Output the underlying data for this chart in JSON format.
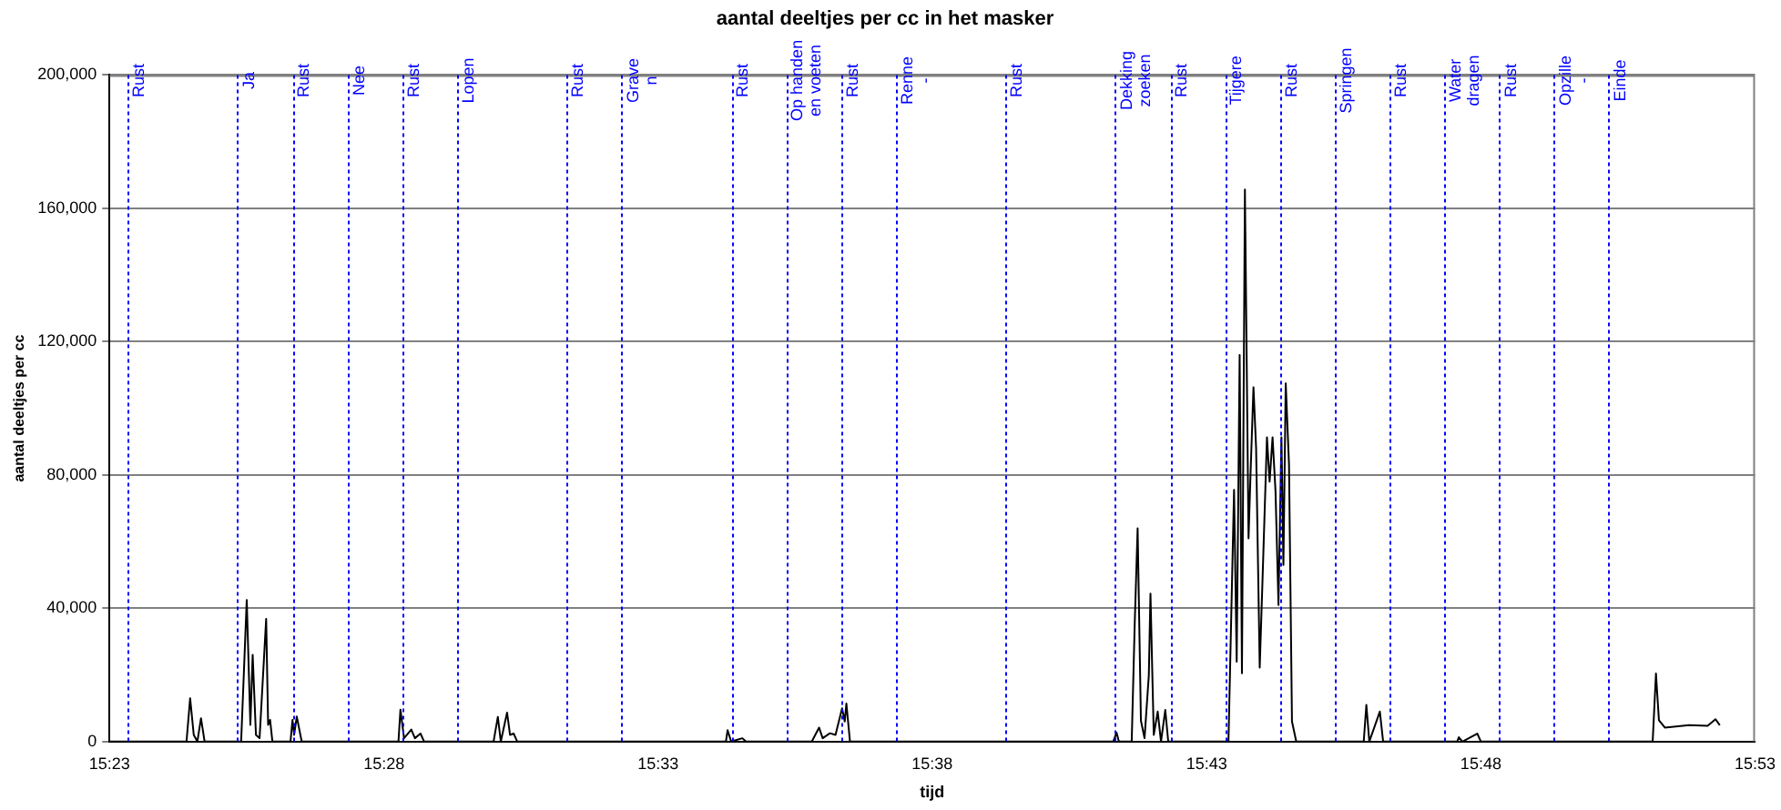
{
  "chart_data": {
    "type": "line",
    "title": "aantal deeltjes per cc in het masker",
    "xlabel": "tijd",
    "ylabel": "aantal deeltjes per cc",
    "x": [
      15.3833,
      15.405,
      15.4067,
      15.4078,
      15.4089,
      15.41,
      15.4111,
      15.4122,
      15.4233,
      15.425,
      15.4261,
      15.4268,
      15.4278,
      15.4289,
      15.4309,
      15.4315,
      15.4321,
      15.4328,
      15.4383,
      15.4389,
      15.4394,
      15.4402,
      15.4417,
      15.4711,
      15.4717,
      15.4728,
      15.475,
      15.4761,
      15.4778,
      15.4789,
      15.5,
      15.5013,
      15.5022,
      15.5041,
      15.505,
      15.5061,
      15.5072,
      15.5706,
      15.5711,
      15.5722,
      15.5756,
      15.5767,
      15.5967,
      15.5989,
      15.6,
      15.6022,
      15.6039,
      15.6059,
      15.6067,
      15.6072,
      15.6083,
      15.6883,
      15.6893,
      15.69,
      15.6939,
      15.6948,
      15.6957,
      15.6967,
      15.6978,
      15.6991,
      15.6996,
      15.7006,
      15.7018,
      15.7028,
      15.7041,
      15.705,
      15.7233,
      15.725,
      15.7258,
      15.7267,
      15.7274,
      15.7283,
      15.7294,
      15.73,
      15.7309,
      15.7317,
      15.7328,
      15.7336,
      15.735,
      15.7358,
      15.7367,
      15.7376,
      15.7385,
      15.7394,
      15.74,
      15.7407,
      15.7417,
      15.7426,
      15.7439,
      15.7644,
      15.7652,
      15.7661,
      15.7693,
      15.7703,
      15.7928,
      15.7933,
      15.7944,
      15.7989,
      15.8,
      15.8522,
      15.8532,
      15.8541,
      15.8559,
      15.8633,
      15.8689,
      15.8713,
      15.8726
    ],
    "series": [
      {
        "color": "#000000",
        "values": [
          0,
          0,
          0,
          13000,
          2000,
          0,
          7000,
          0,
          0,
          42500,
          5000,
          26000,
          2000,
          1000,
          36800,
          5000,
          6500,
          0,
          0,
          6500,
          2000,
          7500,
          0,
          0,
          9600,
          1000,
          3600,
          1000,
          2400,
          0,
          0,
          7400,
          0,
          8700,
          2000,
          2400,
          0,
          0,
          3400,
          0,
          1000,
          0,
          0,
          4200,
          1000,
          2500,
          2000,
          10000,
          6000,
          11400,
          0,
          0,
          2700,
          0,
          0,
          34700,
          64000,
          6300,
          1000,
          19800,
          44400,
          2000,
          9000,
          0,
          9500,
          0,
          0,
          75500,
          24000,
          116000,
          20500,
          165600,
          61000,
          80000,
          106300,
          88000,
          22200,
          47000,
          91300,
          78000,
          91300,
          75000,
          41000,
          91300,
          53000,
          107500,
          83000,
          6000,
          0,
          0,
          11000,
          0,
          9000,
          0,
          0,
          1300,
          0,
          2400,
          0,
          0,
          20400,
          6400,
          4200,
          4900,
          4700,
          6700,
          4900
        ]
      }
    ],
    "xlim": [
      15.3833,
      15.8833
    ],
    "xticks": [
      {
        "value": 15.3833,
        "label": "15:23"
      },
      {
        "value": 15.4667,
        "label": "15:28"
      },
      {
        "value": 15.55,
        "label": "15:33"
      },
      {
        "value": 15.6333,
        "label": "15:38"
      },
      {
        "value": 15.7167,
        "label": "15:43"
      },
      {
        "value": 15.8,
        "label": "15:48"
      },
      {
        "value": 15.8833,
        "label": "15:53"
      }
    ],
    "ylim": [
      0,
      200000
    ],
    "yticks": [
      0,
      {
        "value": 40000,
        "label": "40,000"
      },
      {
        "value": 80000,
        "label": "80,000"
      },
      {
        "value": 120000,
        "label": "120,000"
      },
      {
        "value": 160000,
        "label": "160,000"
      },
      {
        "value": 200000,
        "label": "200,000"
      }
    ],
    "grid": "y",
    "legend": false,
    "ref_lines": [
      {
        "axis": "x",
        "value": 15.3889,
        "label": "Rust",
        "color": "#0000ff",
        "line_style": "dotted"
      },
      {
        "axis": "x",
        "value": 15.4222,
        "label": "Ja",
        "color": "#0000ff",
        "line_style": "dotted"
      },
      {
        "axis": "x",
        "value": 15.4389,
        "label": "Rust",
        "color": "#0000ff",
        "line_style": "dotted"
      },
      {
        "axis": "x",
        "value": 15.4556,
        "label": "Nee",
        "color": "#0000ff",
        "line_style": "dotted"
      },
      {
        "axis": "x",
        "value": 15.4722,
        "label": "Rust",
        "color": "#0000ff",
        "line_style": "dotted"
      },
      {
        "axis": "x",
        "value": 15.4889,
        "label": "Lopen",
        "color": "#0000ff",
        "line_style": "dotted"
      },
      {
        "axis": "x",
        "value": 15.5222,
        "label": "Rust",
        "color": "#0000ff",
        "line_style": "dotted"
      },
      {
        "axis": "x",
        "value": 15.5389,
        "label": "Grave\nn",
        "color": "#0000ff",
        "line_style": "dotted"
      },
      {
        "axis": "x",
        "value": 15.5722,
        "label": "Rust",
        "color": "#0000ff",
        "line_style": "dotted"
      },
      {
        "axis": "x",
        "value": 15.5889,
        "label": "Op handen\nen voeten",
        "color": "#0000ff",
        "line_style": "dotted"
      },
      {
        "axis": "x",
        "value": 15.6056,
        "label": "Rust",
        "color": "#0000ff",
        "line_style": "dotted"
      },
      {
        "axis": "x",
        "value": 15.6222,
        "label": "Renne\n-",
        "color": "#0000ff",
        "line_style": "dotted"
      },
      {
        "axis": "x",
        "value": 15.6556,
        "label": "Rust",
        "color": "#0000ff",
        "line_style": "dotted"
      },
      {
        "axis": "x",
        "value": 15.6889,
        "label": "Dekking\nzoeken",
        "color": "#0000ff",
        "line_style": "dotted"
      },
      {
        "axis": "x",
        "value": 15.7056,
        "label": "Rust",
        "color": "#0000ff",
        "line_style": "dotted"
      },
      {
        "axis": "x",
        "value": 15.7222,
        "label": "Tijgere",
        "color": "#0000ff",
        "line_style": "dotted"
      },
      {
        "axis": "x",
        "value": 15.7389,
        "label": "Rust",
        "color": "#0000ff",
        "line_style": "dotted"
      },
      {
        "axis": "x",
        "value": 15.7556,
        "label": "Springen",
        "color": "#0000ff",
        "line_style": "dotted"
      },
      {
        "axis": "x",
        "value": 15.7722,
        "label": "Rust",
        "color": "#0000ff",
        "line_style": "dotted"
      },
      {
        "axis": "x",
        "value": 15.7889,
        "label": "Water\ndragen",
        "color": "#0000ff",
        "line_style": "dotted"
      },
      {
        "axis": "x",
        "value": 15.8056,
        "label": "Rust",
        "color": "#0000ff",
        "line_style": "dotted"
      },
      {
        "axis": "x",
        "value": 15.8222,
        "label": "Opzille\n-",
        "color": "#0000ff",
        "line_style": "dotted"
      },
      {
        "axis": "x",
        "value": 15.8389,
        "label": "Einde",
        "color": "#0000ff",
        "line_style": "dotted"
      }
    ]
  }
}
